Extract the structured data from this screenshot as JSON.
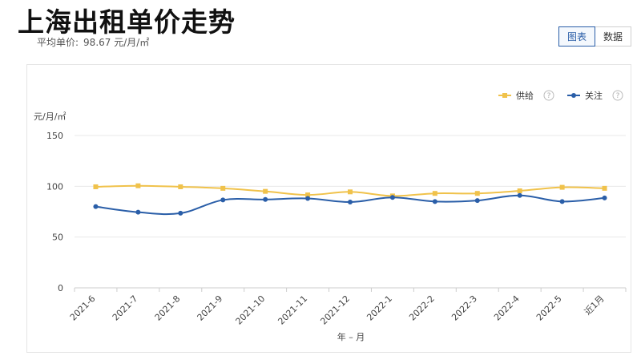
{
  "header": {
    "title": "上海出租单价走势",
    "avg_label": "平均单价:",
    "avg_value": "98.67 元/月/㎡"
  },
  "view_toggle": {
    "chart_label": "图表",
    "data_label": "数据",
    "active": "chart"
  },
  "legend": {
    "help_glyph": "?"
  },
  "colors": {
    "supply": "#f0c24b",
    "attention": "#2a5ea8",
    "grid": "#e8e8e8",
    "active_tab": "#2a5ea8"
  },
  "chart_data": {
    "type": "line",
    "title": "上海出租单价走势",
    "xlabel": "年 – 月",
    "ylabel": "元/月/㎡",
    "ylim": [
      0,
      150
    ],
    "yticks": [
      "0",
      "50",
      "100",
      "150"
    ],
    "grid": true,
    "legend_position": "top-right",
    "categories": [
      "2021-6",
      "2021-7",
      "2021-8",
      "2021-9",
      "2021-10",
      "2021-11",
      "2021-12",
      "2022-1",
      "2022-2",
      "2022-3",
      "2022-4",
      "2022-5",
      "近1月"
    ],
    "series": [
      {
        "name": "供给",
        "color": "#f0c24b",
        "marker": "square",
        "values": [
          99.5,
          100.5,
          99.5,
          98,
          95,
          91.5,
          94.5,
          90.5,
          93,
          93,
          95.5,
          99,
          98
        ]
      },
      {
        "name": "关注",
        "color": "#2a5ea8",
        "marker": "circle",
        "values": [
          80,
          74.5,
          73.5,
          86.5,
          87,
          88,
          84.5,
          89,
          85,
          86,
          91,
          85,
          88.5
        ]
      }
    ]
  }
}
